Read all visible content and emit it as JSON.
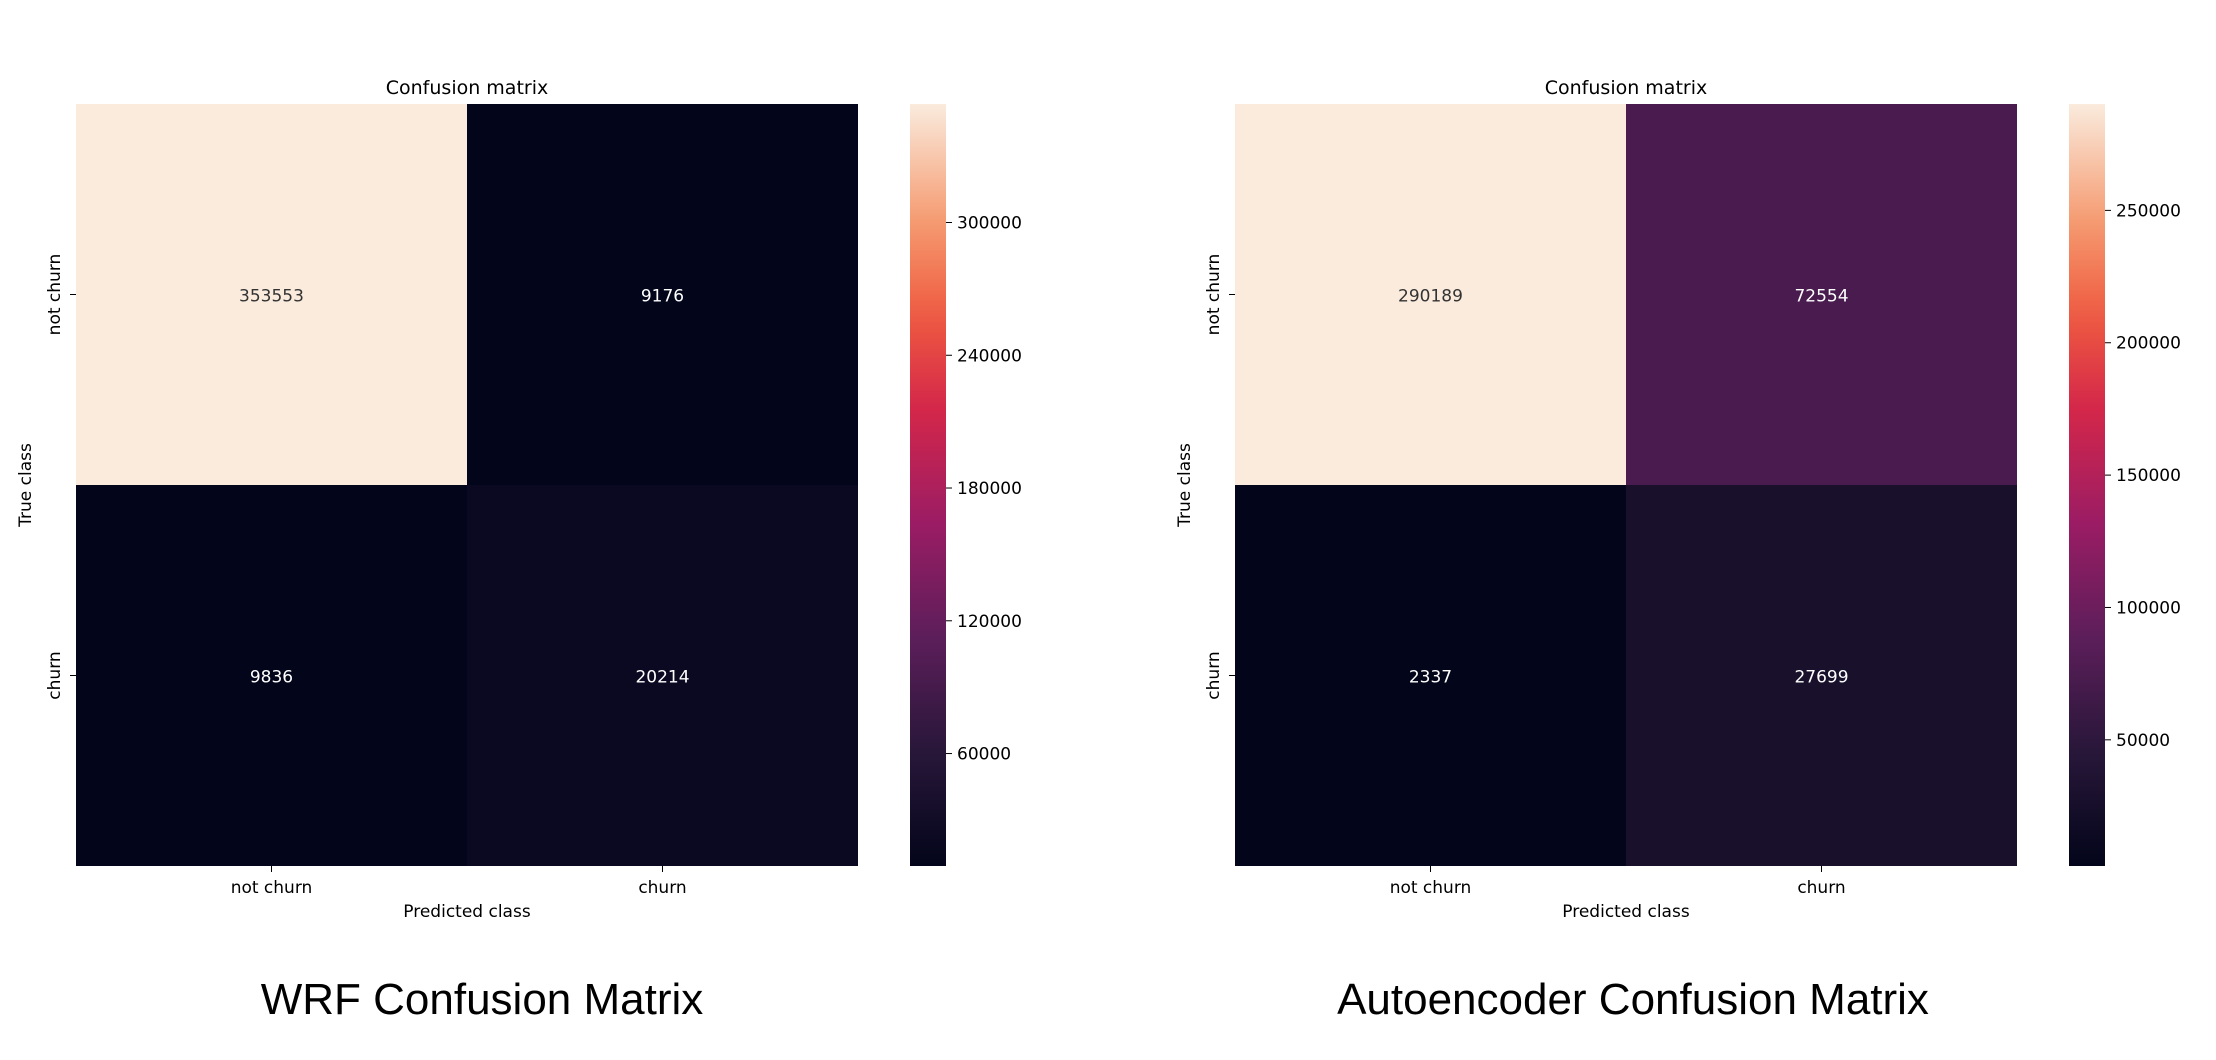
{
  "chart_data": [
    {
      "type": "heatmap",
      "title": "Confusion matrix",
      "xlabel": "Predicted class",
      "ylabel": "True class",
      "x_categories": [
        "not churn",
        "churn"
      ],
      "y_categories": [
        "not churn",
        "churn"
      ],
      "values": [
        [
          353553,
          9176
        ],
        [
          9836,
          20214
        ]
      ],
      "colormap": "rocket",
      "colorbar": {
        "min": 9176,
        "max": 353553,
        "ticks": [
          60000,
          120000,
          180000,
          240000,
          300000
        ]
      },
      "caption": "WRF Confusion Matrix"
    },
    {
      "type": "heatmap",
      "title": "Confusion matrix",
      "xlabel": "Predicted class",
      "ylabel": "True class",
      "x_categories": [
        "not churn",
        "churn"
      ],
      "y_categories": [
        "not churn",
        "churn"
      ],
      "values": [
        [
          290189,
          72554
        ],
        [
          2337,
          27699
        ]
      ],
      "colormap": "rocket",
      "colorbar": {
        "min": 2337,
        "max": 290189,
        "ticks": [
          50000,
          100000,
          150000,
          200000,
          250000
        ]
      },
      "caption": "Autoencoder Confusion Matrix"
    }
  ]
}
